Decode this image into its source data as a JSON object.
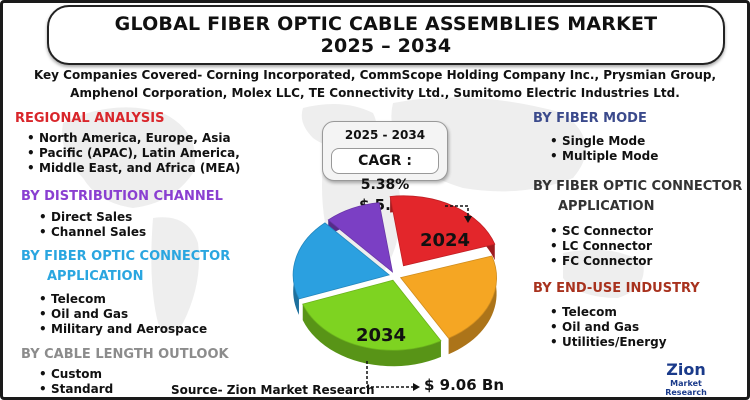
{
  "title": {
    "line1": "GLOBAL FIBER OPTIC CABLE ASSEMBLIES MARKET",
    "line2": "2025 – 2034"
  },
  "companies": {
    "line1": "Key Companies Covered- Corning Incorporated, CommScope Holding Company Inc., Prysmian Group,",
    "line2": "Amphenol Corporation, Molex LLC, TE Connectivity Ltd., Sumitomo Electric Industries Ltd."
  },
  "left": {
    "regional": {
      "title": "REGIONAL ANALYSIS",
      "color": "#d9262b",
      "items": [
        "North America, Europe, Asia",
        "Pacific (APAC), Latin America,",
        "Middle East, and Africa (MEA)"
      ]
    },
    "distribution": {
      "title": "BY DISTRIBUTION CHANNEL",
      "color": "#8a3fd1",
      "items": [
        "Direct Sales",
        "Channel Sales"
      ]
    },
    "connector": {
      "title_line1": "BY FIBER OPTIC CONNECTOR",
      "title_line2": "APPLICATION",
      "color": "#2aa6e0",
      "items": [
        "Telecom",
        "Oil and Gas",
        "Military and Aerospace"
      ]
    },
    "cable_length": {
      "title": "BY CABLE LENGTH OUTLOOK",
      "color": "#8c8c8c",
      "items": [
        "Custom",
        "Standard"
      ]
    }
  },
  "right": {
    "fiber_mode": {
      "title": "BY FIBER MODE",
      "color": "#3b4a8c",
      "items": [
        "Single Mode",
        "Multiple Mode"
      ]
    },
    "connector": {
      "title_line1": "BY FIBER OPTIC CONNECTOR",
      "title_line2": "APPLICATION",
      "color": "#333333",
      "items": [
        "SC Connector",
        "LC Connector",
        "FC Connector"
      ]
    },
    "end_use": {
      "title": "BY END-USE INDUSTRY",
      "color": "#a8321e",
      "items": [
        "Telecom",
        "Oil and Gas",
        "Utilities/Energy"
      ]
    }
  },
  "cagr": {
    "years": "2025 - 2034",
    "value": "CAGR : 5.38%"
  },
  "chart_data": {
    "type": "pie",
    "values": [
      {
        "label": "2024",
        "value": "$ 5.36 Bn",
        "color": "#e3262b"
      },
      {
        "label": "2034",
        "value": "$ 9.06 Bn",
        "color": "#7ed321"
      }
    ],
    "slice_colors": [
      "#e3262b",
      "#f5a623",
      "#7ed321",
      "#2ba0e0",
      "#7b3fc4"
    ]
  },
  "source": "Source- Zion Market Research",
  "logo": {
    "name": "Zion",
    "sub": "Market Research"
  }
}
